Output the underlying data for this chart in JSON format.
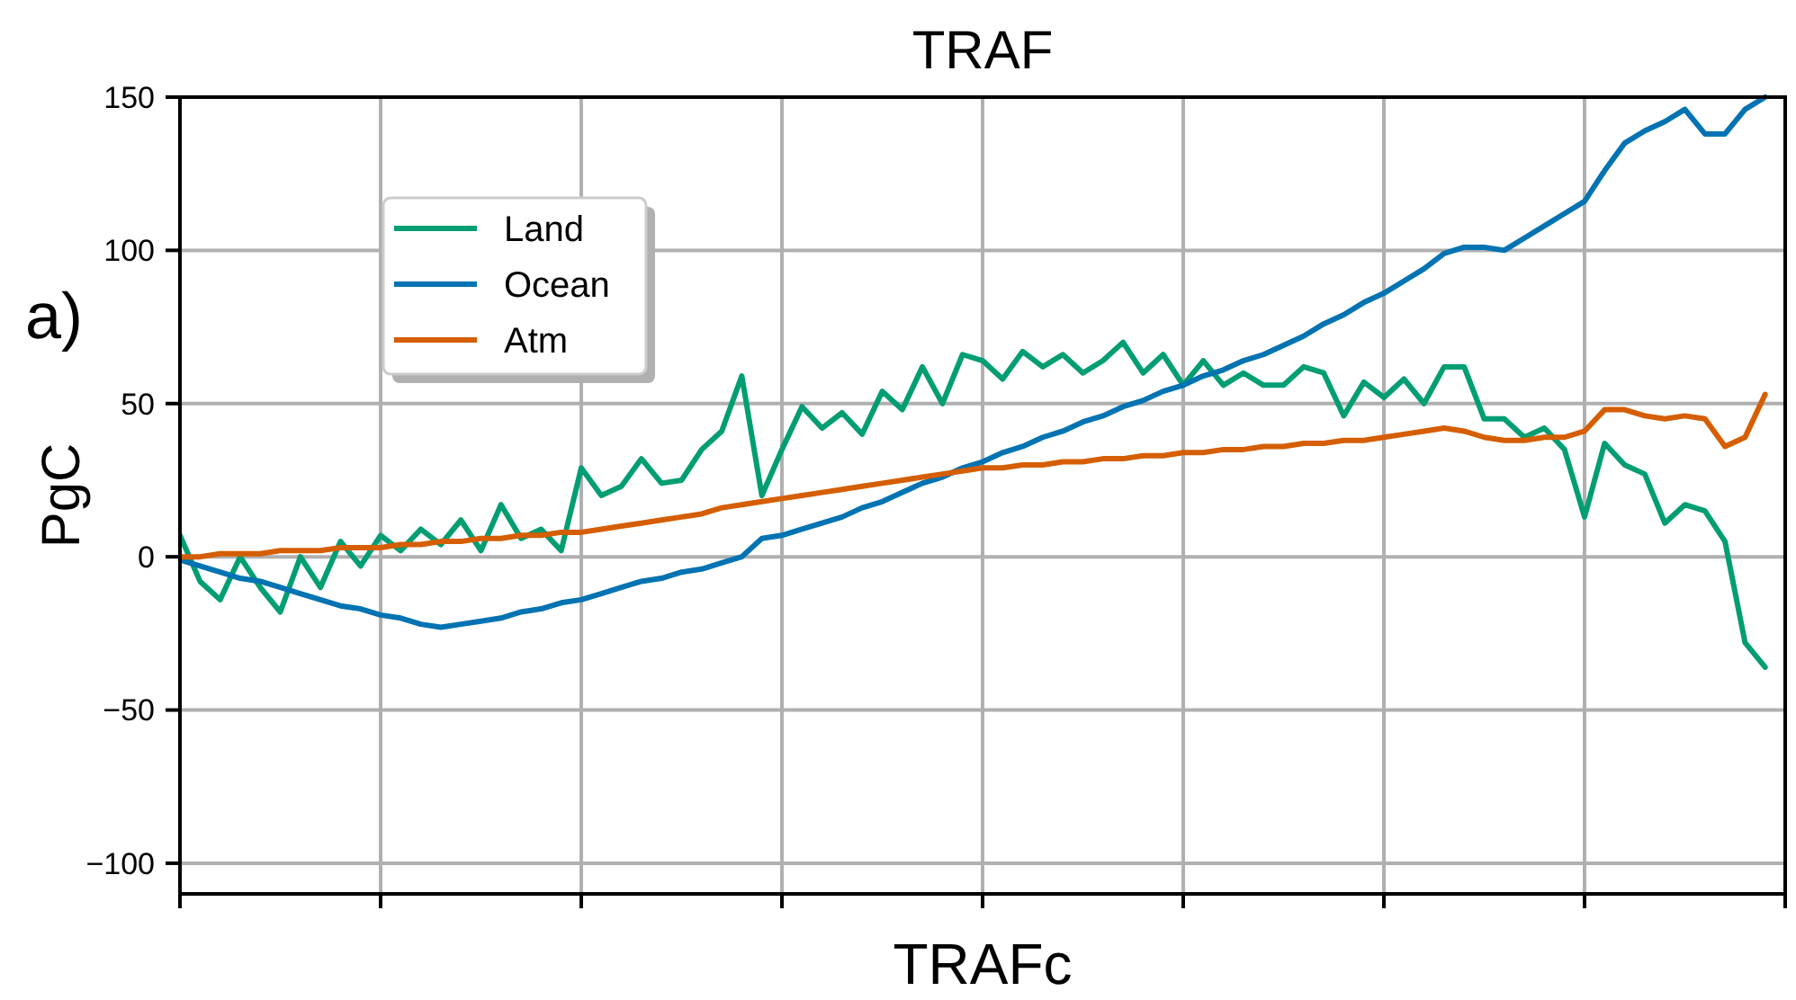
{
  "chart_data": {
    "type": "line",
    "title": "TRAF",
    "xlabel": "TRAFc",
    "ylabel": "PgC",
    "annotations": [
      "a)"
    ],
    "categories": [
      null,
      null,
      null,
      null,
      null,
      null,
      null,
      null,
      null,
      null,
      null,
      null,
      null,
      null,
      null,
      null,
      null,
      null,
      null,
      null,
      null,
      null,
      null,
      null,
      null,
      null,
      null,
      null,
      null,
      null,
      null,
      null,
      null,
      null,
      null,
      null,
      null,
      null,
      null,
      null,
      null,
      null,
      null,
      null,
      null,
      null,
      null,
      null,
      null,
      null,
      null,
      null,
      null,
      null,
      null,
      null,
      null,
      null,
      null,
      null,
      null,
      null,
      null,
      null,
      null,
      null,
      null,
      null,
      null,
      null,
      null,
      null,
      null,
      null,
      null,
      null,
      null,
      null,
      null,
      null
    ],
    "ylim": [
      -110,
      150
    ],
    "yticks": [
      {
        "value": -100,
        "label": "−100"
      },
      {
        "value": -50,
        "label": "−50"
      },
      0,
      50,
      100,
      150
    ],
    "grid": true,
    "legend": "top left",
    "marker": "none",
    "line_style": "solid",
    "series": [
      {
        "name": "Land",
        "color": "#029e73",
        "values": [
          7,
          -8,
          -14,
          0,
          -10,
          -18,
          0,
          -10,
          5,
          -3,
          7,
          2,
          9,
          4,
          12,
          2,
          17,
          6,
          9,
          2,
          29,
          20,
          23,
          32,
          24,
          25,
          35,
          41,
          59,
          20,
          35,
          49,
          42,
          47,
          40,
          54,
          48,
          62,
          50,
          66,
          64,
          58,
          67,
          62,
          66,
          60,
          64,
          70,
          60,
          66,
          56,
          64,
          56,
          60,
          56,
          56,
          62,
          60,
          46,
          57,
          52,
          58,
          50,
          62,
          62,
          45,
          45,
          39,
          42,
          35,
          13,
          37,
          30,
          27,
          11,
          17,
          15,
          5,
          -28,
          -36
        ]
      },
      {
        "name": "Ocean",
        "color": "#0173b2",
        "values": [
          -1,
          -3,
          -5,
          -7,
          -8,
          -10,
          -12,
          -14,
          -16,
          -17,
          -19,
          -20,
          -22,
          -23,
          -22,
          -21,
          -20,
          -18,
          -17,
          -15,
          -14,
          -12,
          -10,
          -8,
          -7,
          -5,
          -4,
          -2,
          0,
          6,
          7,
          9,
          11,
          13,
          16,
          18,
          21,
          24,
          26,
          29,
          31,
          34,
          36,
          39,
          41,
          44,
          46,
          49,
          51,
          54,
          56,
          59,
          61,
          64,
          66,
          69,
          72,
          76,
          79,
          83,
          86,
          90,
          94,
          99,
          101,
          101,
          100,
          104,
          108,
          112,
          116,
          126,
          135,
          139,
          142,
          146,
          138,
          138,
          146,
          150
        ]
      },
      {
        "name": "Atm",
        "color": "#d55e00",
        "values": [
          0,
          0,
          1,
          1,
          1,
          2,
          2,
          2,
          3,
          3,
          3,
          4,
          4,
          5,
          5,
          6,
          6,
          7,
          7,
          8,
          8,
          9,
          10,
          11,
          12,
          13,
          14,
          16,
          17,
          18,
          19,
          20,
          21,
          22,
          23,
          24,
          25,
          26,
          27,
          28,
          29,
          29,
          30,
          30,
          31,
          31,
          32,
          32,
          33,
          33,
          34,
          34,
          35,
          35,
          36,
          36,
          37,
          37,
          38,
          38,
          39,
          40,
          41,
          42,
          41,
          39,
          38,
          38,
          39,
          39,
          41,
          48,
          48,
          46,
          45,
          46,
          45,
          36,
          39,
          53
        ]
      }
    ]
  }
}
